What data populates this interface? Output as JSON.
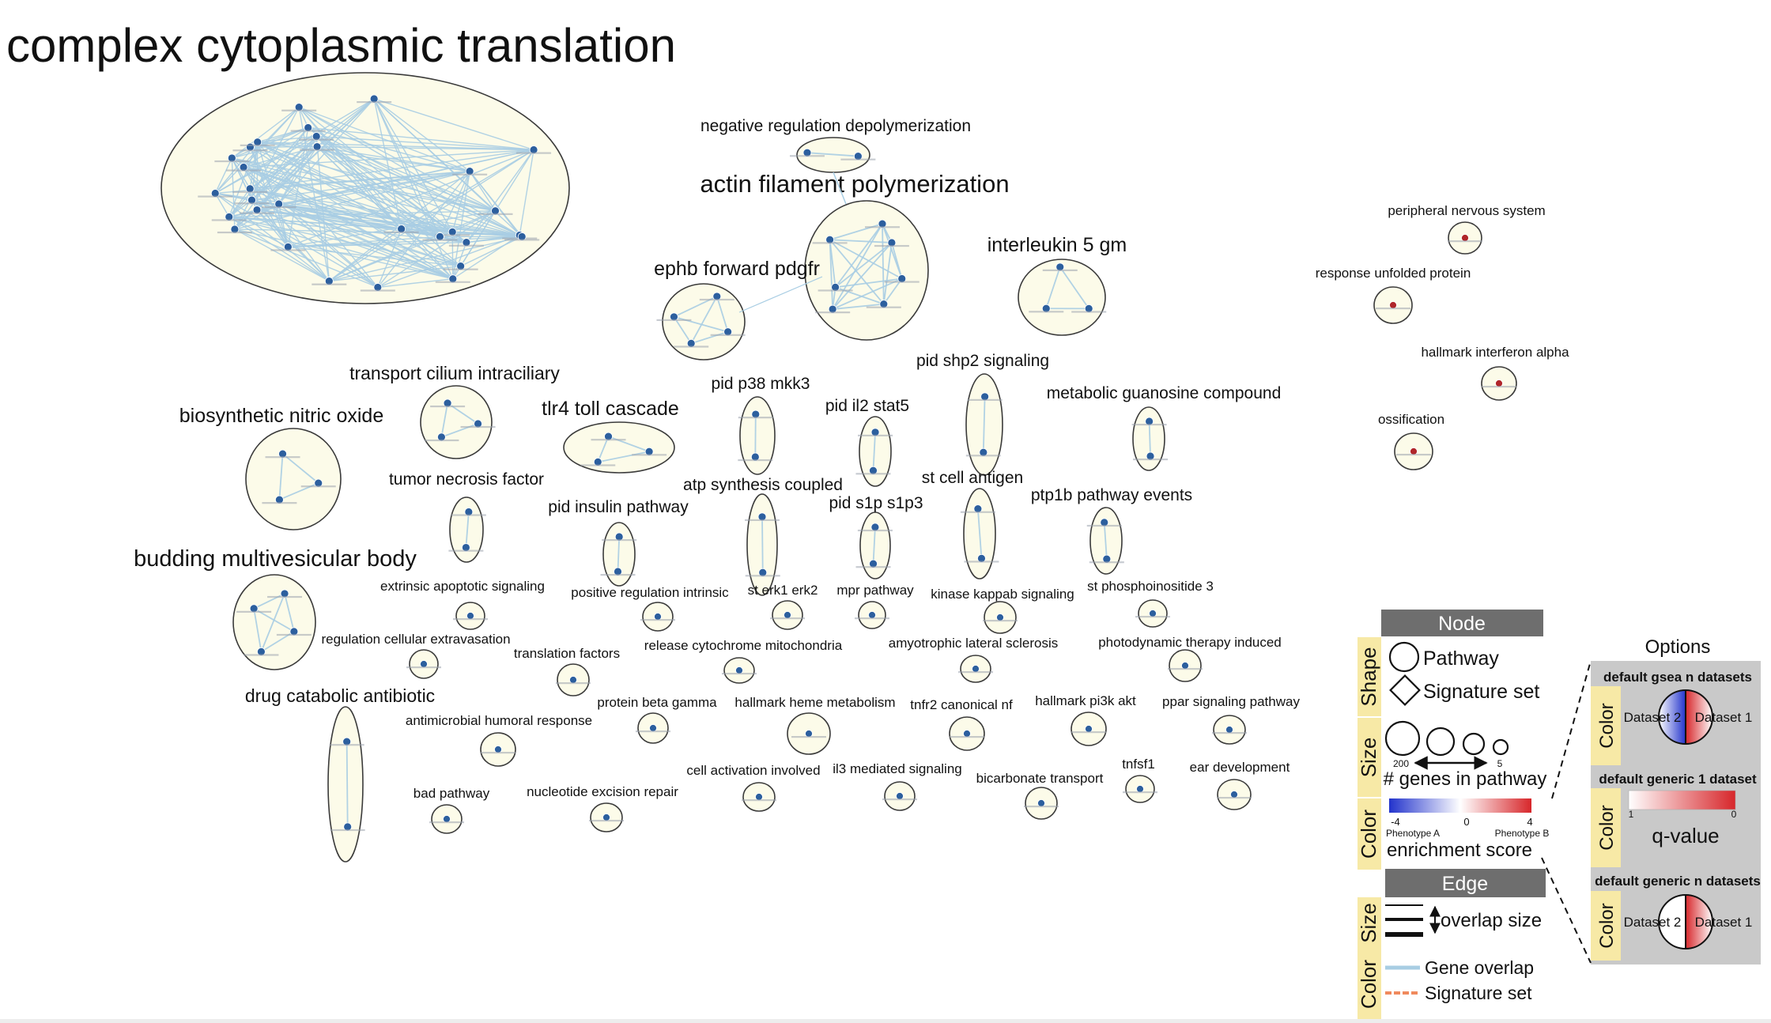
{
  "colors": {
    "cluster_fill": "#fcfbe9",
    "cluster_stroke": "#3a3a3a",
    "node_blue": "#2c5f9e",
    "node_red": "#b0262a",
    "edge_gene": "#a8cde3",
    "edge_signature": "#f08a5d",
    "legend_header": "#6e6e6e",
    "legend_tab": "#f7e9a6",
    "options_panel": "#c9c9c9"
  },
  "clusters": [
    {
      "id": "c1",
      "label": "complex cytoplasmic translation",
      "size": "xlarge",
      "color": "blue",
      "nodes": 30,
      "dense": true
    },
    {
      "id": "c2",
      "label": "negative regulation depolymerization",
      "size": "small",
      "color": "blue",
      "nodes": 2
    },
    {
      "id": "c3",
      "label": "actin filament polymerization",
      "size": "large",
      "color": "blue",
      "nodes": 7
    },
    {
      "id": "c4",
      "label": "ephb forward pdgfr",
      "size": "medium",
      "color": "blue",
      "nodes": 4
    },
    {
      "id": "c5",
      "label": "interleukin 5 gm",
      "size": "medium",
      "color": "blue",
      "nodes": 3
    },
    {
      "id": "c6",
      "label": "peripheral nervous system",
      "size": "tiny",
      "color": "red",
      "nodes": 1
    },
    {
      "id": "c7",
      "label": "response unfolded protein",
      "size": "tiny",
      "color": "red",
      "nodes": 1
    },
    {
      "id": "c8",
      "label": "hallmark interferon alpha",
      "size": "tiny",
      "color": "red",
      "nodes": 1
    },
    {
      "id": "c9",
      "label": "ossification",
      "size": "tiny",
      "color": "red",
      "nodes": 1
    },
    {
      "id": "c10",
      "label": "transport cilium intraciliary",
      "size": "medium",
      "color": "blue",
      "nodes": 3
    },
    {
      "id": "c11",
      "label": "biosynthetic nitric oxide",
      "size": "medium",
      "color": "blue",
      "nodes": 3
    },
    {
      "id": "c12",
      "label": "tlr4 toll cascade",
      "size": "medium",
      "color": "blue",
      "nodes": 3
    },
    {
      "id": "c13",
      "label": "pid p38 mkk3",
      "size": "small",
      "color": "blue",
      "nodes": 2
    },
    {
      "id": "c14",
      "label": "pid shp2 signaling",
      "size": "small",
      "color": "blue",
      "nodes": 2
    },
    {
      "id": "c15",
      "label": "pid il2 stat5",
      "size": "small",
      "color": "blue",
      "nodes": 2
    },
    {
      "id": "c16",
      "label": "metabolic guanosine compound",
      "size": "small",
      "color": "blue",
      "nodes": 2
    },
    {
      "id": "c17",
      "label": "tumor necrosis factor",
      "size": "small",
      "color": "blue",
      "nodes": 2
    },
    {
      "id": "c18",
      "label": "atp synthesis coupled",
      "size": "small",
      "color": "blue",
      "nodes": 2
    },
    {
      "id": "c19",
      "label": "st cell antigen",
      "size": "small",
      "color": "blue",
      "nodes": 2
    },
    {
      "id": "c20",
      "label": "pid insulin pathway",
      "size": "small",
      "color": "blue",
      "nodes": 2
    },
    {
      "id": "c21",
      "label": "pid s1p s1p3",
      "size": "small",
      "color": "blue",
      "nodes": 2
    },
    {
      "id": "c22",
      "label": "ptp1b pathway events",
      "size": "small",
      "color": "blue",
      "nodes": 2
    },
    {
      "id": "c23",
      "label": "budding multivesicular body",
      "size": "medium",
      "color": "blue",
      "nodes": 4
    },
    {
      "id": "c24",
      "label": "extrinsic apoptotic signaling",
      "size": "tiny",
      "color": "blue",
      "nodes": 1
    },
    {
      "id": "c25",
      "label": "positive regulation intrinsic",
      "size": "tiny",
      "color": "blue",
      "nodes": 1
    },
    {
      "id": "c26",
      "label": "st erk1 erk2",
      "size": "tiny",
      "color": "blue",
      "nodes": 1
    },
    {
      "id": "c27",
      "label": "mpr pathway",
      "size": "tiny",
      "color": "blue",
      "nodes": 1
    },
    {
      "id": "c28",
      "label": "kinase kappab signaling",
      "size": "tiny",
      "color": "blue",
      "nodes": 1
    },
    {
      "id": "c29",
      "label": "st phosphoinositide 3",
      "size": "tiny",
      "color": "blue",
      "nodes": 1
    },
    {
      "id": "c30",
      "label": "regulation cellular extravasation",
      "size": "tiny",
      "color": "blue",
      "nodes": 1
    },
    {
      "id": "c31",
      "label": "translation factors",
      "size": "tiny",
      "color": "blue",
      "nodes": 1
    },
    {
      "id": "c32",
      "label": "release cytochrome mitochondria",
      "size": "tiny",
      "color": "blue",
      "nodes": 1
    },
    {
      "id": "c33",
      "label": "amyotrophic lateral sclerosis",
      "size": "tiny",
      "color": "blue",
      "nodes": 1
    },
    {
      "id": "c34",
      "label": "photodynamic therapy induced",
      "size": "tiny",
      "color": "blue",
      "nodes": 1
    },
    {
      "id": "c35",
      "label": "drug catabolic antibiotic",
      "size": "small",
      "color": "blue",
      "nodes": 2
    },
    {
      "id": "c36",
      "label": "antimicrobial humoral response",
      "size": "tiny",
      "color": "blue",
      "nodes": 1
    },
    {
      "id": "c37",
      "label": "protein beta gamma",
      "size": "tiny",
      "color": "blue",
      "nodes": 1
    },
    {
      "id": "c38",
      "label": "hallmark heme metabolism",
      "size": "tiny",
      "color": "blue",
      "nodes": 1
    },
    {
      "id": "c39",
      "label": "tnfr2 canonical nf",
      "size": "tiny",
      "color": "blue",
      "nodes": 1
    },
    {
      "id": "c40",
      "label": "hallmark pi3k akt",
      "size": "tiny",
      "color": "blue",
      "nodes": 1
    },
    {
      "id": "c41",
      "label": "ppar signaling pathway",
      "size": "tiny",
      "color": "blue",
      "nodes": 1
    },
    {
      "id": "c42",
      "label": "cell activation involved",
      "size": "tiny",
      "color": "blue",
      "nodes": 1
    },
    {
      "id": "c43",
      "label": "il3 mediated signaling",
      "size": "tiny",
      "color": "blue",
      "nodes": 1
    },
    {
      "id": "c44",
      "label": "bicarbonate transport",
      "size": "tiny",
      "color": "blue",
      "nodes": 1
    },
    {
      "id": "c45",
      "label": "tnfsf1",
      "size": "tiny",
      "color": "blue",
      "nodes": 1
    },
    {
      "id": "c46",
      "label": "ear development",
      "size": "tiny",
      "color": "blue",
      "nodes": 1
    },
    {
      "id": "c47",
      "label": "bad pathway",
      "size": "tiny",
      "color": "blue",
      "nodes": 1
    },
    {
      "id": "c48",
      "label": "nucleotide excision repair",
      "size": "tiny",
      "color": "blue",
      "nodes": 1
    }
  ],
  "legend": {
    "node_header": "Node",
    "edge_header": "Edge",
    "tab_shape": "Shape",
    "tab_size": "Size",
    "tab_color": "Color",
    "pathway": "Pathway",
    "signature_set": "Signature set",
    "size_max": "200",
    "size_min": "5",
    "genes_in_pathway": "# genes in pathway",
    "enrichment_min": "-4",
    "enrichment_mid": "0",
    "enrichment_max": "4",
    "phenotype_a": "Phenotype A",
    "phenotype_b": "Phenotype B",
    "enrichment_score": "enrichment score",
    "overlap_size": "overlap size",
    "gene_overlap": "Gene overlap",
    "signature_set_edge": "Signature set"
  },
  "options": {
    "title": "Options",
    "tab_color": "Color",
    "gsea_n": "default gsea n datasets",
    "dataset_2": "Dataset 2",
    "dataset_1": "Dataset 1",
    "generic_1": "default generic 1 dataset",
    "qvalue_min": "1",
    "qvalue_max": "0",
    "qvalue": "q-value",
    "generic_n": "default generic n datasets"
  }
}
